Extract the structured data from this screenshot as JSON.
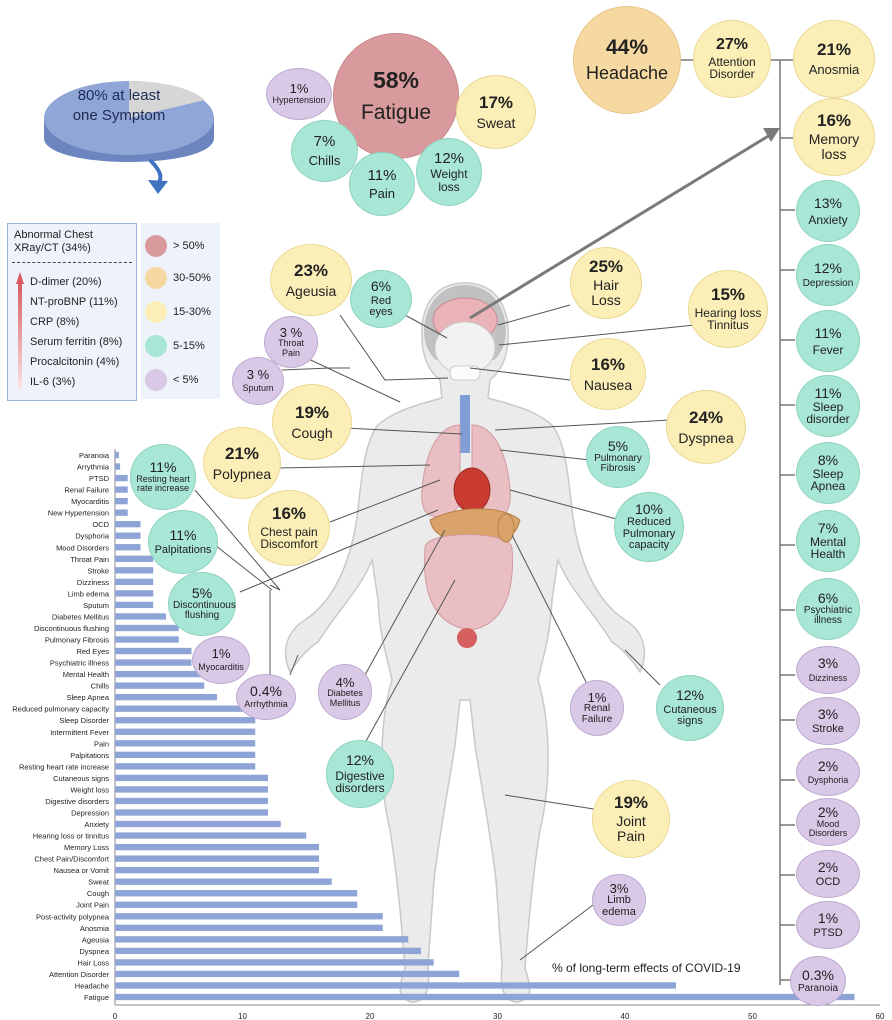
{
  "pie": {
    "value_label": "80% at least",
    "value_label_2": "one Symptom",
    "fraction": 0.8
  },
  "legend": {
    "title": "Abnormal Chest XRay/CT (34%)",
    "items": [
      "D-dimer (20%)",
      "NT-proBNP (11%)",
      "CRP (8%)",
      "Serum ferritin (8%)",
      "Procalcitonin (4%)",
      "IL-6 (3%)"
    ]
  },
  "color_legend": [
    {
      "label": "> 50%",
      "color": "#d89a9c"
    },
    {
      "label": "30-50%",
      "color": "#f6d9a1"
    },
    {
      "label": "15-30%",
      "color": "#fbeeb7"
    },
    {
      "label": "5-15%",
      "color": "#a8e6d5"
    },
    {
      "label": "< 5%",
      "color": "#d9c8e6"
    }
  ],
  "colors": {
    "gt50": "#d89a9c",
    "r30_50": "#f6d9a1",
    "r15_30": "#fbeeb7",
    "r5_15": "#a8e6d5",
    "lt5": "#d9c8e6",
    "gt50_border": "#c98789",
    "r30_50_border": "#e8c589",
    "r15_30_border": "#ead893",
    "r5_15_border": "#8fd3c0",
    "lt5_border": "#bca9d0",
    "bar": "#8ea4d6",
    "body": "#e9e9e9",
    "pie_main": "#8fa6d6",
    "pie_rest": "#d6d6d6"
  },
  "bubbles": {
    "fatigue": {
      "pct": "58%",
      "label": "Fatigue"
    },
    "hypertension": {
      "pct": "1%",
      "label": "Hypertension"
    },
    "sweat": {
      "pct": "17%",
      "label": "Sweat"
    },
    "chills": {
      "pct": "7%",
      "label": "Chills"
    },
    "pain": {
      "pct": "11%",
      "label": "Pain"
    },
    "weight_loss": {
      "pct": "12%",
      "label": "Weight loss"
    },
    "headache": {
      "pct": "44%",
      "label": "Headache"
    },
    "attention": {
      "pct": "27%",
      "label": "Attention Disorder"
    },
    "anosmia": {
      "pct": "21%",
      "label": "Anosmia"
    },
    "memory": {
      "pct": "16%",
      "label": "Memory loss"
    },
    "anxiety": {
      "pct": "13%",
      "label": "Anxiety"
    },
    "depression": {
      "pct": "12%",
      "label": "Depression"
    },
    "fever": {
      "pct": "11%",
      "label": "Fever"
    },
    "sleep_disorder": {
      "pct": "11%",
      "label": "Sleep disorder"
    },
    "sleep_apnea": {
      "pct": "8%",
      "label": "Sleep Apnea"
    },
    "mental_health": {
      "pct": "7%",
      "label": "Mental Health"
    },
    "psychiatric": {
      "pct": "6%",
      "label": "Psychiatric illness"
    },
    "dizziness": {
      "pct": "3%",
      "label": "Dizziness"
    },
    "stroke": {
      "pct": "3%",
      "label": "Stroke"
    },
    "dysphoria": {
      "pct": "2%",
      "label": "Dysphoria"
    },
    "mood": {
      "pct": "2%",
      "label": "Mood Disorders"
    },
    "ocd": {
      "pct": "2%",
      "label": "OCD"
    },
    "ptsd": {
      "pct": "1%",
      "label": "PTSD"
    },
    "paranoia": {
      "pct": "0.3%",
      "label": "Paranoia"
    },
    "ageusia": {
      "pct": "23%",
      "label": "Ageusia"
    },
    "red_eyes": {
      "pct": "6%",
      "label": "Red eyes"
    },
    "hair_loss": {
      "pct": "25%",
      "label": "Hair Loss"
    },
    "hearing": {
      "pct": "15%",
      "label": "Hearing loss Tinnitus"
    },
    "throat_pain": {
      "pct": "3 %",
      "label": "Throat Pain"
    },
    "sputum": {
      "pct": "3 %",
      "label": "Sputum"
    },
    "nausea": {
      "pct": "16%",
      "label": "Nausea"
    },
    "cough": {
      "pct": "19%",
      "label": "Cough"
    },
    "dyspnea": {
      "pct": "24%",
      "label": "Dyspnea"
    },
    "polypnea": {
      "pct": "21%",
      "label": "Polypnea"
    },
    "pulm_fibrosis": {
      "pct": "5%",
      "label": "Pulmonary Fibrosis"
    },
    "resting_hr": {
      "pct": "11%",
      "label": "Resting heart rate increase"
    },
    "chest_pain": {
      "pct": "16%",
      "label": "Chest pain Discomfort"
    },
    "reduced_pulm": {
      "pct": "10%",
      "label": "Reduced Pulmonary capacity"
    },
    "palpitations": {
      "pct": "11%",
      "label": "Palpitations"
    },
    "disc_flushing": {
      "pct": "5%",
      "label": "Discontinuous flushing"
    },
    "myocarditis": {
      "pct": "1%",
      "label": "Myocarditis"
    },
    "arrhythmia": {
      "pct": "0.4%",
      "label": "Arrhythmia"
    },
    "diabetes": {
      "pct": "4%",
      "label": "Diabetes Mellitus"
    },
    "renal": {
      "pct": "1%",
      "label": "Renal Failure"
    },
    "cutaneous": {
      "pct": "12%",
      "label": "Cutaneous signs"
    },
    "digestive": {
      "pct": "12%",
      "label": "Digestive disorders"
    },
    "joint_pain": {
      "pct": "19%",
      "label": "Joint Pain"
    },
    "limb_edema": {
      "pct": "3%",
      "label": "Limb edema"
    }
  },
  "chart_data": {
    "type": "bar",
    "orientation": "horizontal",
    "title": "% of long-term effects of COVID-19",
    "xlim": [
      0,
      60
    ],
    "x_ticks": [
      "0",
      "10",
      "20",
      "30",
      "40",
      "50",
      "60"
    ],
    "grid": false,
    "categories": [
      "Paranoia",
      "Arrythmia",
      "PTSD",
      "Renal Failure",
      "Myocarditis",
      "New Hypertension",
      "OCD",
      "Dysphoria",
      "Mood Disorders",
      "Throat Pain",
      "Stroke",
      "Dizziness",
      "Limb edema",
      "Sputum",
      "Diabetes Mellitus",
      "Discontinuous flushing",
      "Pulmonary Fibrosis",
      "Red Eyes",
      "Psychiatric illness",
      "Mental Health",
      "Chills",
      "Sleep Apnea",
      "Reduced pulmonary capacity",
      "Sleep Disorder",
      "Intermittent Fever",
      "Pain",
      "Palpitations",
      "Resting heart rate increase",
      "Cutaneous signs",
      "Weight loss",
      "Digestive disorders",
      "Depression",
      "Anxiety",
      "Hearing loss or tinnitus",
      "Memory Loss",
      "Chest Pain/Discomfort",
      "Nausea or Vomit",
      "Sweat",
      "Cough",
      "Joint Pain",
      "Post-activity polypnea",
      "Anosmia",
      "Ageusia",
      "Dyspnea",
      "Hair Loss",
      "Attention Disorder",
      "Headache",
      "Fatigue"
    ],
    "values": [
      0.3,
      0.4,
      1,
      1,
      1,
      1,
      2,
      2,
      2,
      3,
      3,
      3,
      3,
      3,
      4,
      5,
      5,
      6,
      6,
      7,
      7,
      8,
      10,
      11,
      11,
      11,
      11,
      11,
      12,
      12,
      12,
      12,
      13,
      15,
      16,
      16,
      16,
      17,
      19,
      19,
      21,
      21,
      23,
      24,
      25,
      27,
      44,
      58
    ]
  }
}
